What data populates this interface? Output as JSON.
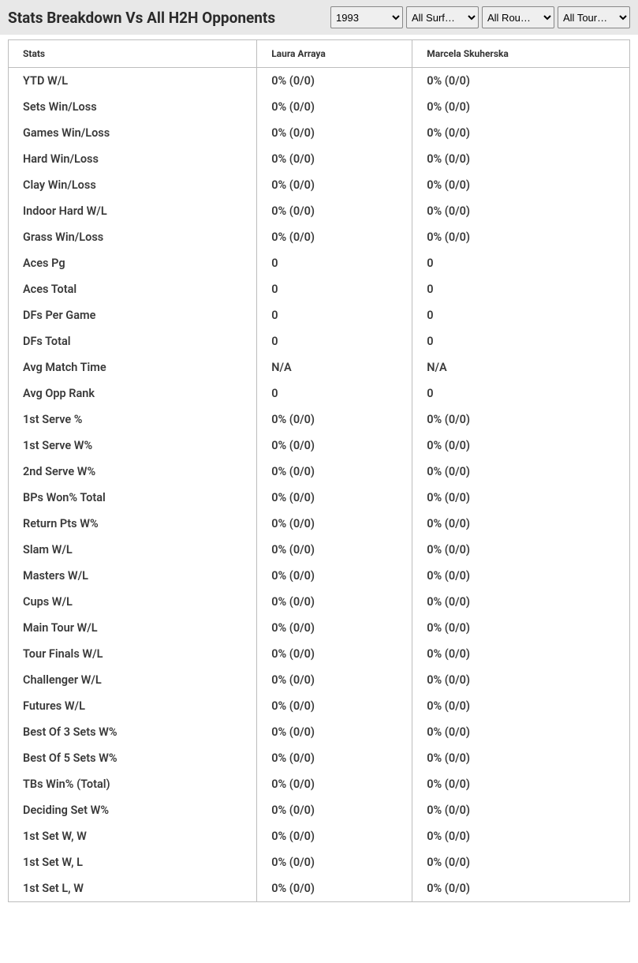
{
  "header": {
    "title": "Stats Breakdown Vs All H2H Opponents"
  },
  "filters": {
    "year": {
      "selected": "1993",
      "options": [
        "1993"
      ]
    },
    "surface": {
      "selected": "All Surf…",
      "options": [
        "All Surf…"
      ]
    },
    "round": {
      "selected": "All Rou…",
      "options": [
        "All Rou…"
      ]
    },
    "tournament": {
      "selected": "All Tour…",
      "options": [
        "All Tour…"
      ]
    }
  },
  "table": {
    "columns": {
      "stats": "Stats",
      "player1": "Laura Arraya",
      "player2": "Marcela Skuherska"
    },
    "rows": [
      {
        "stat": "YTD W/L",
        "p1": "0% (0/0)",
        "p2": "0% (0/0)"
      },
      {
        "stat": "Sets Win/Loss",
        "p1": "0% (0/0)",
        "p2": "0% (0/0)"
      },
      {
        "stat": "Games Win/Loss",
        "p1": "0% (0/0)",
        "p2": "0% (0/0)"
      },
      {
        "stat": "Hard Win/Loss",
        "p1": "0% (0/0)",
        "p2": "0% (0/0)"
      },
      {
        "stat": "Clay Win/Loss",
        "p1": "0% (0/0)",
        "p2": "0% (0/0)"
      },
      {
        "stat": "Indoor Hard W/L",
        "p1": "0% (0/0)",
        "p2": "0% (0/0)"
      },
      {
        "stat": "Grass Win/Loss",
        "p1": "0% (0/0)",
        "p2": "0% (0/0)"
      },
      {
        "stat": "Aces Pg",
        "p1": "0",
        "p2": "0"
      },
      {
        "stat": "Aces Total",
        "p1": "0",
        "p2": "0"
      },
      {
        "stat": "DFs Per Game",
        "p1": "0",
        "p2": "0"
      },
      {
        "stat": "DFs Total",
        "p1": "0",
        "p2": "0"
      },
      {
        "stat": "Avg Match Time",
        "p1": "N/A",
        "p2": "N/A"
      },
      {
        "stat": "Avg Opp Rank",
        "p1": "0",
        "p2": "0"
      },
      {
        "stat": "1st Serve %",
        "p1": "0% (0/0)",
        "p2": "0% (0/0)"
      },
      {
        "stat": "1st Serve W%",
        "p1": "0% (0/0)",
        "p2": "0% (0/0)"
      },
      {
        "stat": "2nd Serve W%",
        "p1": "0% (0/0)",
        "p2": "0% (0/0)"
      },
      {
        "stat": "BPs Won% Total",
        "p1": "0% (0/0)",
        "p2": "0% (0/0)"
      },
      {
        "stat": "Return Pts W%",
        "p1": "0% (0/0)",
        "p2": "0% (0/0)"
      },
      {
        "stat": "Slam W/L",
        "p1": "0% (0/0)",
        "p2": "0% (0/0)"
      },
      {
        "stat": "Masters W/L",
        "p1": "0% (0/0)",
        "p2": "0% (0/0)"
      },
      {
        "stat": "Cups W/L",
        "p1": "0% (0/0)",
        "p2": "0% (0/0)"
      },
      {
        "stat": "Main Tour W/L",
        "p1": "0% (0/0)",
        "p2": "0% (0/0)"
      },
      {
        "stat": "Tour Finals W/L",
        "p1": "0% (0/0)",
        "p2": "0% (0/0)"
      },
      {
        "stat": "Challenger W/L",
        "p1": "0% (0/0)",
        "p2": "0% (0/0)"
      },
      {
        "stat": "Futures W/L",
        "p1": "0% (0/0)",
        "p2": "0% (0/0)"
      },
      {
        "stat": "Best Of 3 Sets W%",
        "p1": "0% (0/0)",
        "p2": "0% (0/0)"
      },
      {
        "stat": "Best Of 5 Sets W%",
        "p1": "0% (0/0)",
        "p2": "0% (0/0)"
      },
      {
        "stat": "TBs Win% (Total)",
        "p1": "0% (0/0)",
        "p2": "0% (0/0)"
      },
      {
        "stat": "Deciding Set W%",
        "p1": "0% (0/0)",
        "p2": "0% (0/0)"
      },
      {
        "stat": "1st Set W, W",
        "p1": "0% (0/0)",
        "p2": "0% (0/0)"
      },
      {
        "stat": "1st Set W, L",
        "p1": "0% (0/0)",
        "p2": "0% (0/0)"
      },
      {
        "stat": "1st Set L, W",
        "p1": "0% (0/0)",
        "p2": "0% (0/0)"
      }
    ]
  }
}
